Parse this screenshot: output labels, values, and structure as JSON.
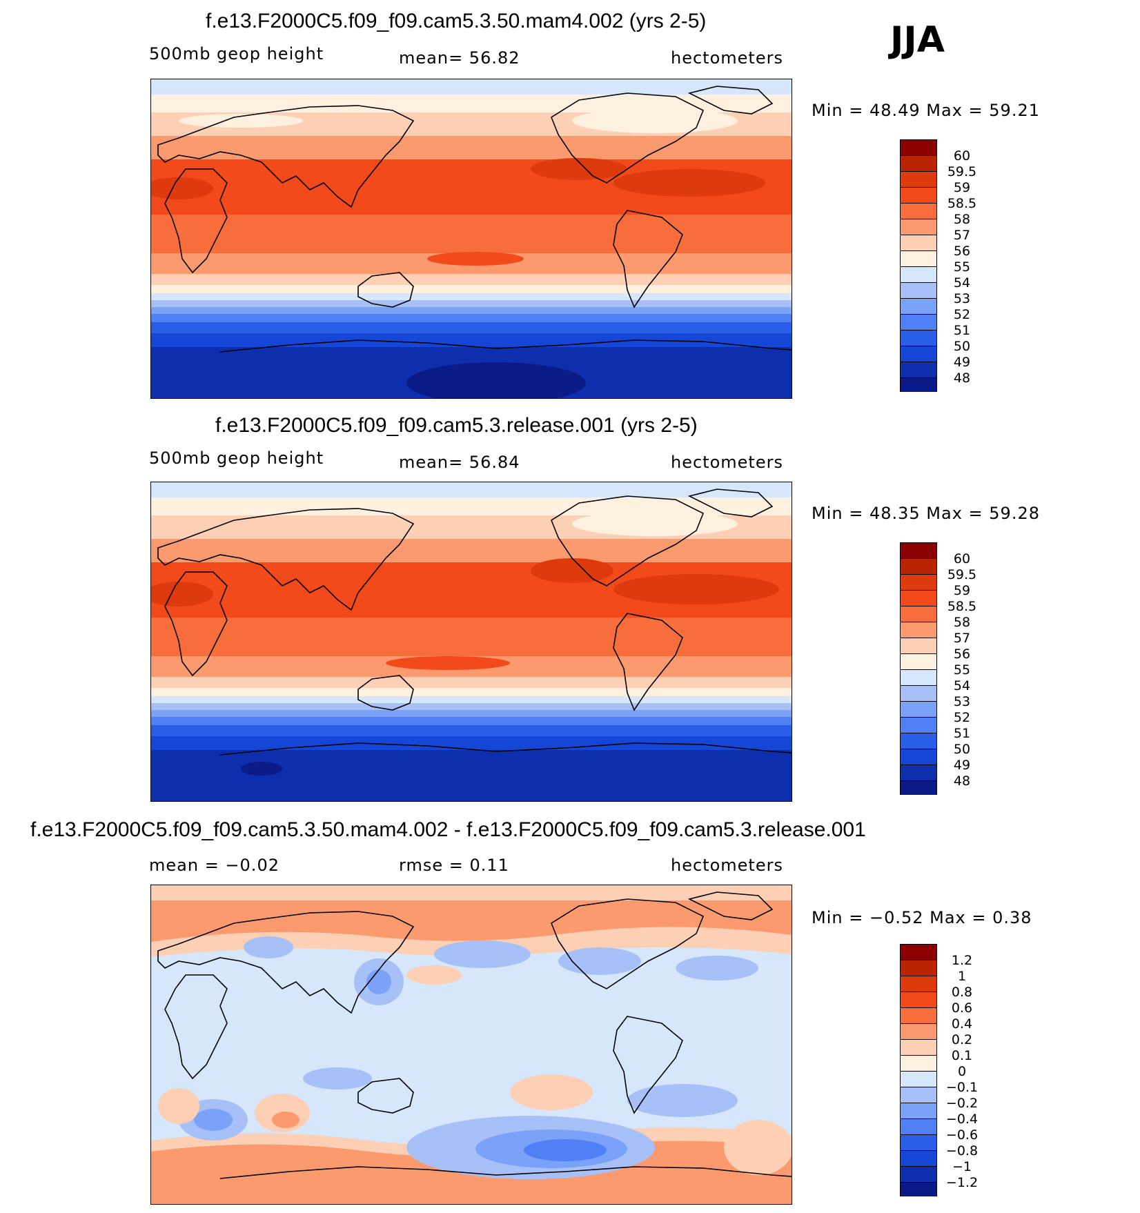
{
  "season": "JJA",
  "colors": {
    "abs": [
      "#0a1a86",
      "#0d2fae",
      "#1646d6",
      "#2a5ee8",
      "#4f80f5",
      "#7aa2f8",
      "#a7c1f8",
      "#d6e7fb",
      "#fef0de",
      "#fdcfb5",
      "#fb9a6e",
      "#f76d3c",
      "#f24a1b",
      "#dd3a0d",
      "#bb2402",
      "#8b0000"
    ],
    "diff": [
      "#0a1a86",
      "#0d2fae",
      "#1646d6",
      "#2a5ee8",
      "#4f80f5",
      "#7aa2f8",
      "#a7c1f8",
      "#d6e7fb",
      "#fef0de",
      "#fdcfb5",
      "#fb9a6e",
      "#f76d3c",
      "#f24a1b",
      "#dd3a0d",
      "#bb2402",
      "#8b0000"
    ]
  },
  "panels": [
    {
      "title": "f.e13.F2000C5.f09_f09.cam5.3.50.mam4.002 (yrs 2-5)",
      "left_label": "500mb  geop  height",
      "center_label": "mean=   56.82",
      "units": "hectometers",
      "minmax": "Min  =    48.49  Max  =    59.21",
      "ticks": [
        "60",
        "59.5",
        "59",
        "58.5",
        "58",
        "57",
        "56",
        "55",
        "54",
        "53",
        "52",
        "51",
        "50",
        "49",
        "48"
      ]
    },
    {
      "title": "f.e13.F2000C5.f09_f09.cam5.3.release.001 (yrs 2-5)",
      "left_label": "500mb  geop  height",
      "center_label": "mean=   56.84",
      "units": "hectometers",
      "minmax": "Min  =    48.35  Max  =    59.28",
      "ticks": [
        "60",
        "59.5",
        "59",
        "58.5",
        "58",
        "57",
        "56",
        "55",
        "54",
        "53",
        "52",
        "51",
        "50",
        "49",
        "48"
      ]
    },
    {
      "title": "f.e13.F2000C5.f09_f09.cam5.3.50.mam4.002 - f.e13.F2000C5.f09_f09.cam5.3.release.001",
      "left_label": "mean  =    −0.02",
      "center_label": "rmse  =     0.11",
      "units": "hectometers",
      "minmax": "Min  =   −0.52  Max  =     0.38",
      "ticks": [
        "1.2",
        "1",
        "0.8",
        "0.6",
        "0.4",
        "0.2",
        "0.1",
        "0",
        "−0.1",
        "−0.2",
        "−0.4",
        "−0.6",
        "−0.8",
        "−1",
        "−1.2"
      ]
    }
  ]
}
